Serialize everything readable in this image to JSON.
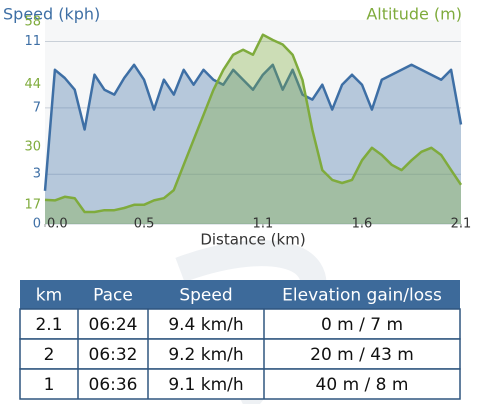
{
  "chart_data": {
    "type": "line",
    "ylabel": "Speed (kph)",
    "y2label": "Altitude (m)",
    "xlabel": "Distance (km)",
    "x": [
      0,
      0.05,
      0.1,
      0.15,
      0.2,
      0.25,
      0.3,
      0.35,
      0.4,
      0.45,
      0.5,
      0.55,
      0.6,
      0.65,
      0.7,
      0.75,
      0.8,
      0.85,
      0.9,
      0.95,
      1.0,
      1.05,
      1.1,
      1.15,
      1.2,
      1.25,
      1.3,
      1.35,
      1.4,
      1.45,
      1.5,
      1.55,
      1.6,
      1.65,
      1.7,
      1.75,
      1.8,
      1.85,
      1.9,
      1.95,
      2.0,
      2.05,
      2.1
    ],
    "series": [
      {
        "name": "Speed",
        "color": "#3e6fa5",
        "axis": "y",
        "values": [
          2.0,
          9.3,
          8.8,
          8.1,
          5.7,
          9.0,
          8.1,
          7.8,
          8.8,
          9.6,
          8.7,
          6.9,
          8.7,
          7.8,
          9.3,
          8.4,
          9.3,
          8.7,
          8.4,
          9.3,
          8.7,
          8.1,
          9.0,
          9.6,
          8.1,
          9.3,
          7.8,
          7.5,
          8.4,
          6.9,
          8.4,
          9.0,
          8.4,
          6.9,
          8.7,
          9.0,
          9.3,
          9.6,
          9.3,
          9.0,
          8.7,
          9.3,
          6.0
        ]
      },
      {
        "name": "Altitude",
        "color": "#7fab3c",
        "axis": "y2",
        "values": [
          18.1,
          18.0,
          18.8,
          18.5,
          15.4,
          15.4,
          15.8,
          15.8,
          16.3,
          17.0,
          17.0,
          18.0,
          18.5,
          20.3,
          26.0,
          31.6,
          37.2,
          42.8,
          47.3,
          50.7,
          51.8,
          50.7,
          55.2,
          54.0,
          53.0,
          50.7,
          45.0,
          33.8,
          24.8,
          22.6,
          21.9,
          22.6,
          27.0,
          29.8,
          28.2,
          26.0,
          24.8,
          27.0,
          28.9,
          29.8,
          28.2,
          24.8,
          21.5
        ]
      }
    ],
    "xlim": [
      0,
      2.1
    ],
    "xticks": [
      {
        "value": 0,
        "label": "0.0"
      },
      0.5,
      1.1,
      1.6,
      2.1
    ],
    "ylim": [
      0,
      12.3
    ],
    "yticks": [
      0,
      3,
      7,
      11
    ],
    "y2lim": [
      12.7,
      58.5
    ],
    "y2ticks": [
      17,
      30,
      44,
      58
    ],
    "grid": true
  },
  "table": {
    "header": [
      "km",
      "Pace",
      "Speed",
      "Elevation gain/loss"
    ],
    "rows": [
      [
        "2.1",
        "06:24",
        "9.4 km/h",
        "0 m / 7 m"
      ],
      [
        "2",
        "06:32",
        "9.2 km/h",
        "20 m / 43 m"
      ],
      [
        "1",
        "06:36",
        "9.1 km/h",
        "40 m / 8 m"
      ]
    ]
  }
}
